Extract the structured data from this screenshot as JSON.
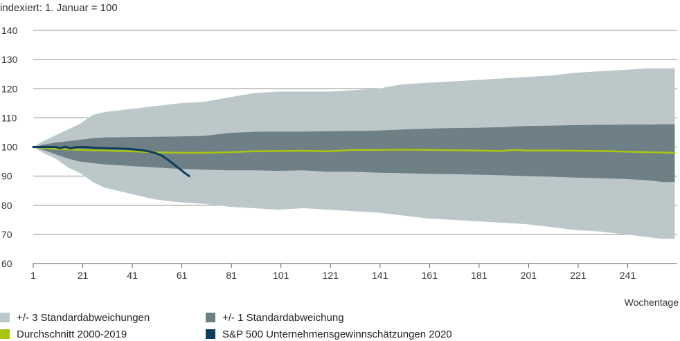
{
  "chart_data": {
    "type": "area",
    "title": "",
    "note": "indexiert: 1. Januar = 100",
    "xlabel": "Wochentage",
    "ylabel": "",
    "xlim": [
      1,
      261
    ],
    "ylim": [
      60,
      140
    ],
    "x_ticks": [
      1,
      21,
      41,
      61,
      81,
      101,
      121,
      141,
      161,
      181,
      201,
      221,
      241
    ],
    "y_ticks": [
      60,
      70,
      80,
      90,
      100,
      110,
      120,
      130,
      140
    ],
    "grid": "horizontal",
    "legend_position": "bottom",
    "colors": {
      "band3": "#bcc7ca",
      "band1": "#6e7f85",
      "average": "#a7c70f",
      "sp500": "#0e3d5c",
      "grid": "#8c8c8c"
    },
    "series": [
      {
        "name": "+/- 3 Standardabweichungen",
        "kind": "band",
        "x": [
          1,
          5,
          10,
          15,
          20,
          25,
          30,
          40,
          50,
          60,
          70,
          80,
          90,
          100,
          110,
          120,
          130,
          140,
          150,
          160,
          170,
          180,
          190,
          200,
          210,
          220,
          230,
          240,
          250,
          255,
          260
        ],
        "upper": [
          100,
          102,
          104,
          106,
          108,
          111,
          112,
          113,
          114,
          115,
          115.5,
          117,
          118.5,
          119,
          119,
          119,
          119.5,
          120,
          121.5,
          122,
          122.5,
          123,
          123.5,
          124,
          124.5,
          125.5,
          126,
          126.5,
          127,
          127,
          127
        ],
        "lower": [
          100,
          98,
          96,
          93,
          91,
          88,
          86,
          84,
          82,
          81,
          80.5,
          79.5,
          79,
          78.5,
          79,
          78.5,
          78,
          77.5,
          76.5,
          75.5,
          75,
          74.5,
          74,
          73.5,
          72.5,
          71.5,
          71,
          70,
          69,
          68.5,
          68.5
        ]
      },
      {
        "name": "+/- 1 Standardabweichung",
        "kind": "band",
        "x": [
          1,
          5,
          10,
          15,
          20,
          25,
          30,
          40,
          50,
          60,
          70,
          80,
          90,
          100,
          110,
          120,
          130,
          140,
          150,
          160,
          170,
          180,
          190,
          200,
          210,
          220,
          230,
          240,
          250,
          255,
          260
        ],
        "upper": [
          100,
          100.8,
          101.5,
          102,
          102.5,
          103,
          103.3,
          103.4,
          103.5,
          103.6,
          103.8,
          104.8,
          105.2,
          105.3,
          105.3,
          105.4,
          105.5,
          105.6,
          106,
          106.3,
          106.5,
          106.6,
          106.8,
          107.2,
          107.3,
          107.5,
          107.6,
          107.7,
          107.7,
          107.8,
          107.8
        ],
        "lower": [
          100,
          99,
          97.5,
          96,
          95,
          94.5,
          94,
          93.5,
          93,
          92.5,
          92.2,
          92,
          92,
          91.8,
          92,
          91.5,
          91.5,
          91.2,
          91,
          90.8,
          90.7,
          90.5,
          90.3,
          90,
          89.8,
          89.5,
          89.3,
          89,
          88.5,
          88,
          88
        ]
      },
      {
        "name": "Durchschnitt 2000-2019",
        "kind": "line",
        "x": [
          1,
          10,
          20,
          30,
          40,
          50,
          60,
          70,
          80,
          90,
          100,
          110,
          120,
          130,
          140,
          150,
          160,
          170,
          180,
          190,
          195,
          200,
          210,
          220,
          230,
          240,
          250,
          260
        ],
        "y": [
          100,
          99.3,
          99,
          98.8,
          98.5,
          98.2,
          98,
          98,
          98.2,
          98.5,
          98.6,
          98.7,
          98.5,
          99,
          99,
          99.1,
          99,
          98.9,
          98.8,
          98.6,
          99,
          98.8,
          98.8,
          98.7,
          98.6,
          98.4,
          98.2,
          98
        ]
      },
      {
        "name": "S&P 500 Unternehmensgewinnschätzungen 2020",
        "kind": "line",
        "x": [
          1,
          5,
          10,
          12,
          14,
          16,
          18,
          20,
          23,
          26,
          30,
          35,
          40,
          44,
          47,
          50,
          53,
          56,
          59,
          62,
          64
        ],
        "y": [
          100,
          100,
          100,
          99.6,
          100.1,
          99.5,
          99.9,
          100,
          99.9,
          99.7,
          99.6,
          99.5,
          99.3,
          99,
          98.6,
          98,
          97,
          95.2,
          93.2,
          91.2,
          90
        ]
      }
    ]
  }
}
